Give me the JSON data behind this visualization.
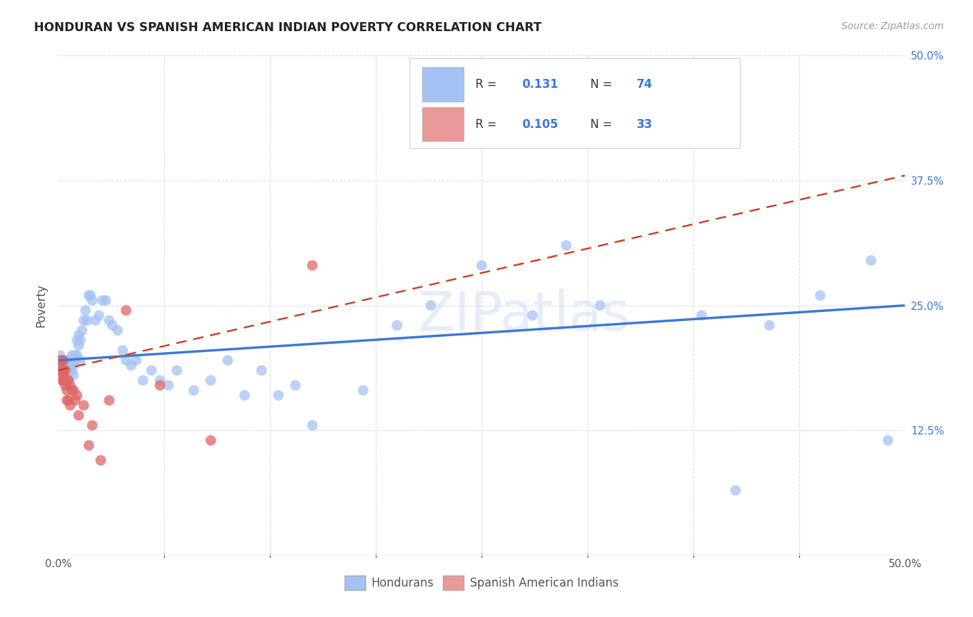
{
  "title": "HONDURAN VS SPANISH AMERICAN INDIAN POVERTY CORRELATION CHART",
  "source": "Source: ZipAtlas.com",
  "ylabel": "Poverty",
  "xlim": [
    0.0,
    0.5
  ],
  "ylim": [
    0.0,
    0.5
  ],
  "xtick_vals": [
    0.0,
    0.0625,
    0.125,
    0.1875,
    0.25,
    0.3125,
    0.375,
    0.4375,
    0.5
  ],
  "xtick_major_vals": [
    0.0,
    0.5
  ],
  "xtick_major_labels": [
    "0.0%",
    "50.0%"
  ],
  "ytick_vals": [
    0.125,
    0.25,
    0.375,
    0.5
  ],
  "ytick_right_labels": [
    "12.5%",
    "25.0%",
    "37.5%",
    "50.0%"
  ],
  "legend_labels": [
    "Hondurans",
    "Spanish American Indians"
  ],
  "blue_color": "#a4c2f4",
  "pink_color": "#ea9999",
  "blue_scatter_color": "#a4c2f4",
  "pink_scatter_color": "#e06666",
  "blue_line_color": "#3c78d8",
  "pink_line_color": "#cc4125",
  "R_blue": 0.131,
  "N_blue": 74,
  "R_pink": 0.105,
  "N_pink": 33,
  "blue_x": [
    0.001,
    0.001,
    0.002,
    0.002,
    0.003,
    0.003,
    0.004,
    0.004,
    0.005,
    0.005,
    0.005,
    0.006,
    0.006,
    0.006,
    0.007,
    0.007,
    0.007,
    0.008,
    0.008,
    0.008,
    0.009,
    0.009,
    0.01,
    0.01,
    0.011,
    0.011,
    0.012,
    0.012,
    0.013,
    0.013,
    0.014,
    0.015,
    0.016,
    0.017,
    0.018,
    0.019,
    0.02,
    0.022,
    0.024,
    0.026,
    0.028,
    0.03,
    0.032,
    0.035,
    0.038,
    0.04,
    0.043,
    0.046,
    0.05,
    0.055,
    0.06,
    0.065,
    0.07,
    0.08,
    0.09,
    0.1,
    0.11,
    0.12,
    0.13,
    0.14,
    0.15,
    0.18,
    0.2,
    0.22,
    0.25,
    0.28,
    0.3,
    0.32,
    0.38,
    0.4,
    0.42,
    0.45,
    0.48,
    0.49
  ],
  "blue_y": [
    0.19,
    0.2,
    0.185,
    0.195,
    0.175,
    0.195,
    0.185,
    0.195,
    0.185,
    0.19,
    0.18,
    0.185,
    0.195,
    0.175,
    0.19,
    0.195,
    0.185,
    0.2,
    0.185,
    0.195,
    0.19,
    0.18,
    0.195,
    0.2,
    0.215,
    0.2,
    0.21,
    0.22,
    0.215,
    0.195,
    0.225,
    0.235,
    0.245,
    0.235,
    0.26,
    0.26,
    0.255,
    0.235,
    0.24,
    0.255,
    0.255,
    0.235,
    0.23,
    0.225,
    0.205,
    0.195,
    0.19,
    0.195,
    0.175,
    0.185,
    0.175,
    0.17,
    0.185,
    0.165,
    0.175,
    0.195,
    0.16,
    0.185,
    0.16,
    0.17,
    0.13,
    0.165,
    0.23,
    0.25,
    0.29,
    0.24,
    0.31,
    0.25,
    0.24,
    0.065,
    0.23,
    0.26,
    0.295,
    0.115
  ],
  "pink_x": [
    0.001,
    0.001,
    0.001,
    0.002,
    0.002,
    0.002,
    0.003,
    0.003,
    0.003,
    0.003,
    0.004,
    0.004,
    0.005,
    0.005,
    0.005,
    0.006,
    0.006,
    0.007,
    0.007,
    0.008,
    0.009,
    0.01,
    0.011,
    0.012,
    0.015,
    0.018,
    0.02,
    0.025,
    0.03,
    0.04,
    0.06,
    0.09,
    0.15
  ],
  "pink_y": [
    0.185,
    0.19,
    0.195,
    0.185,
    0.195,
    0.175,
    0.185,
    0.175,
    0.195,
    0.18,
    0.17,
    0.185,
    0.155,
    0.165,
    0.175,
    0.155,
    0.175,
    0.15,
    0.17,
    0.165,
    0.165,
    0.155,
    0.16,
    0.14,
    0.15,
    0.11,
    0.13,
    0.095,
    0.155,
    0.245,
    0.17,
    0.115,
    0.29
  ],
  "watermark": "ZIPatlas",
  "background_color": "#ffffff",
  "grid_color": "#dddddd",
  "blue_trendline_start_x": 0.0,
  "blue_trendline_start_y": 0.195,
  "blue_trendline_end_x": 0.5,
  "blue_trendline_end_y": 0.25,
  "pink_trendline_start_x": 0.0,
  "pink_trendline_start_y": 0.185,
  "pink_trendline_end_x": 0.5,
  "pink_trendline_end_y": 0.38
}
